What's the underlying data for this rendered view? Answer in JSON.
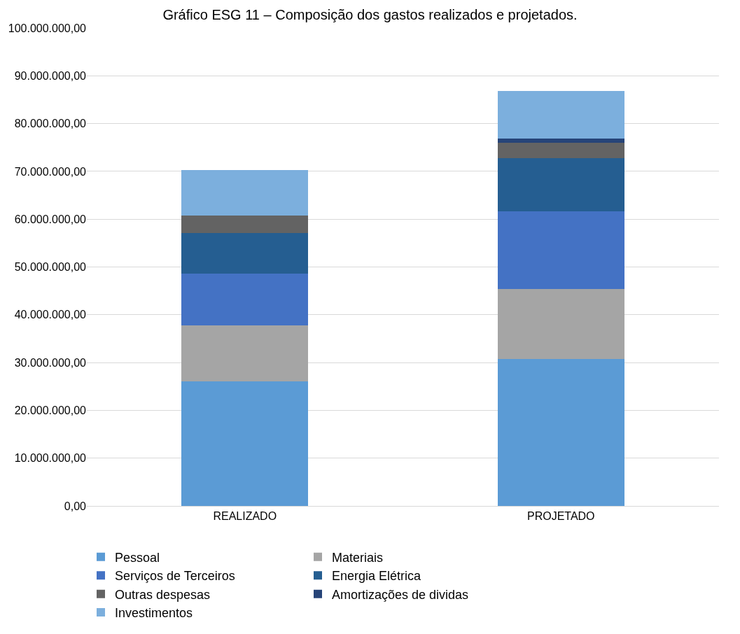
{
  "chart_data": {
    "type": "bar",
    "title": "Gráfico ESG 11 – Composição dos gastos realizados e projetados.",
    "categories": [
      "REALIZADO",
      "PROJETADO"
    ],
    "stacked": true,
    "series": [
      {
        "name": "Pessoal",
        "color": "#5b9bd5",
        "values": [
          26000000,
          30800000
        ]
      },
      {
        "name": "Materiais",
        "color": "#a5a5a5",
        "values": [
          11800000,
          14600000
        ]
      },
      {
        "name": "Serviços de Terceiros",
        "color": "#4472c4",
        "values": [
          10800000,
          16200000
        ]
      },
      {
        "name": "Energia Elétrica",
        "color": "#255e91",
        "values": [
          8500000,
          11200000
        ]
      },
      {
        "name": "Outras despesas",
        "color": "#636363",
        "values": [
          3700000,
          3200000
        ]
      },
      {
        "name": "Amortizações de dividas",
        "color": "#264478",
        "values": [
          0,
          800000
        ]
      },
      {
        "name": "Investimentos",
        "color": "#7cafdd",
        "values": [
          9500000,
          10000000
        ]
      }
    ],
    "ylim": [
      0,
      100000000
    ],
    "yticks": [
      {
        "value": 0,
        "label": "0,00"
      },
      {
        "value": 10000000,
        "label": "10.000.000,00"
      },
      {
        "value": 20000000,
        "label": "20.000.000,00"
      },
      {
        "value": 30000000,
        "label": "30.000.000,00"
      },
      {
        "value": 40000000,
        "label": "40.000.000,00"
      },
      {
        "value": 50000000,
        "label": "50.000.000,00"
      },
      {
        "value": 60000000,
        "label": "60.000.000,00"
      },
      {
        "value": 70000000,
        "label": "70.000.000,00"
      },
      {
        "value": 80000000,
        "label": "80.000.000,00"
      },
      {
        "value": 90000000,
        "label": "90.000.000,00"
      },
      {
        "value": 100000000,
        "label": "100.000.000,00"
      }
    ],
    "grid": "y",
    "legend": "bottom"
  }
}
